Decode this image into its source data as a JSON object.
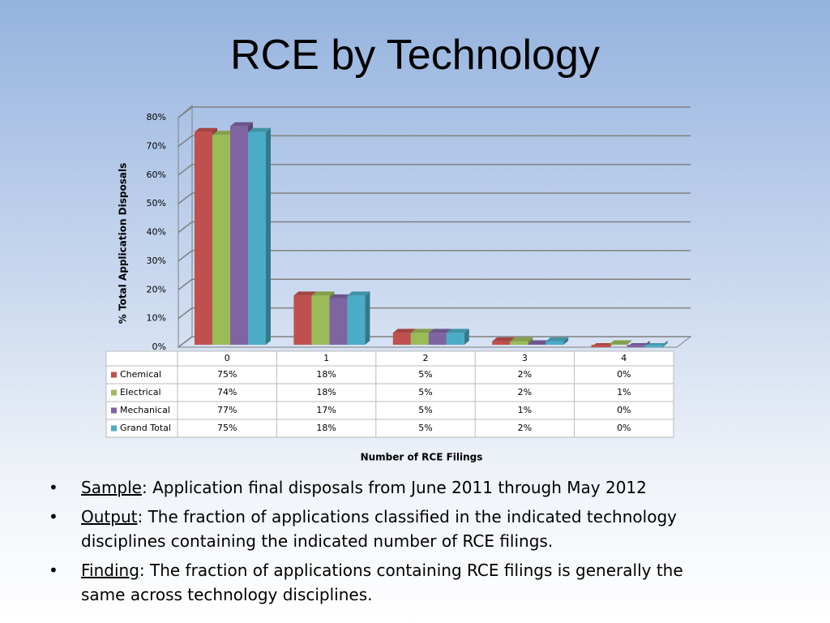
{
  "chart_data": {
    "type": "bar3d",
    "title": "RCE by Technology",
    "ylabel": "% Total Application Disposals",
    "xlabel": "Number of RCE Filings",
    "categories": [
      "0",
      "1",
      "2",
      "3",
      "4"
    ],
    "series": [
      {
        "name": "Chemical",
        "color": "#c0504d",
        "values": [
          75,
          18,
          5,
          2,
          0
        ],
        "value_labels": [
          "75%",
          "18%",
          "5%",
          "2%",
          "0%"
        ]
      },
      {
        "name": "Electrical",
        "color": "#9bbb59",
        "values": [
          74,
          18,
          5,
          2,
          1
        ],
        "value_labels": [
          "74%",
          "18%",
          "5%",
          "2%",
          "1%"
        ]
      },
      {
        "name": "Mechanical",
        "color": "#8064a2",
        "values": [
          77,
          17,
          5,
          1,
          0
        ],
        "value_labels": [
          "77%",
          "17%",
          "5%",
          "1%",
          "0%"
        ]
      },
      {
        "name": "Grand Total",
        "color": "#4bacc6",
        "values": [
          75,
          18,
          5,
          2,
          0
        ],
        "value_labels": [
          "75%",
          "18%",
          "5%",
          "2%",
          "0%"
        ]
      }
    ],
    "ylim": [
      0,
      80
    ],
    "yticks": [
      {
        "value": 0,
        "label": "0%"
      },
      {
        "value": 10,
        "label": "10%"
      },
      {
        "value": 20,
        "label": "20%"
      },
      {
        "value": 30,
        "label": "30%"
      },
      {
        "value": 40,
        "label": "40%"
      },
      {
        "value": 50,
        "label": "50%"
      },
      {
        "value": 60,
        "label": "60%"
      },
      {
        "value": 70,
        "label": "70%"
      },
      {
        "value": 80,
        "label": "80%"
      }
    ],
    "grid": true
  },
  "bullets": [
    {
      "term": "Sample",
      "text": ": Application final disposals from June 2011 through May 2012"
    },
    {
      "term": "Output",
      "text": ": The fraction of applications classified in the indicated technology disciplines containing the indicated number of RCE filings."
    },
    {
      "term": "Finding",
      "text": ": The fraction of applications containing RCE filings is generally the same across technology disciplines."
    }
  ]
}
